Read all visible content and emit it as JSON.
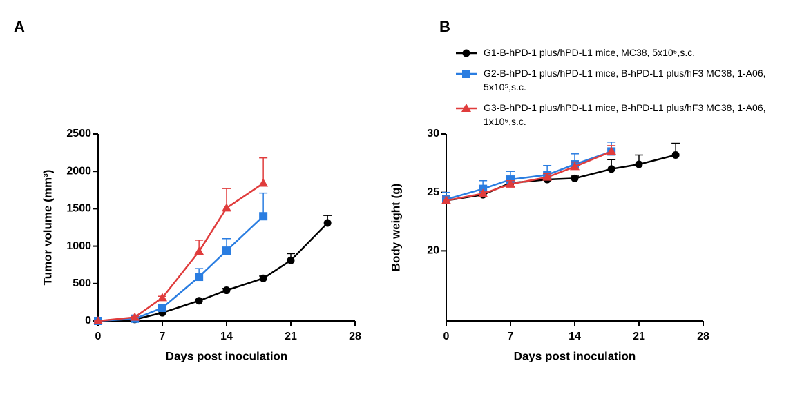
{
  "chart_data": [
    {
      "type": "line",
      "panel_label": "A",
      "x_label": "Days post inoculation",
      "y_label": "Tumor volume (mm³)",
      "xlim": [
        0,
        28
      ],
      "xticks": [
        0,
        7,
        14,
        21,
        28
      ],
      "ylim": [
        0,
        2500
      ],
      "yticks": [
        0,
        500,
        1000,
        1500,
        2000,
        2500
      ],
      "series": [
        {
          "color": "#000000",
          "marker": "circle",
          "x": [
            0,
            4,
            7,
            11,
            14,
            18,
            21,
            25
          ],
          "values": [
            0,
            20,
            110,
            270,
            410,
            570,
            810,
            1310
          ],
          "errors": [
            0,
            5,
            15,
            20,
            25,
            30,
            90,
            100
          ]
        },
        {
          "color": "#2a7de1",
          "marker": "square",
          "x": [
            0,
            4,
            7,
            11,
            14,
            18
          ],
          "values": [
            0,
            30,
            175,
            590,
            940,
            1400
          ],
          "errors": [
            0,
            10,
            30,
            110,
            160,
            310
          ]
        },
        {
          "color": "#e03c3c",
          "marker": "triangle",
          "x": [
            0,
            4,
            7,
            11,
            14,
            18
          ],
          "values": [
            0,
            50,
            310,
            930,
            1510,
            1840
          ],
          "errors": [
            0,
            10,
            20,
            150,
            260,
            340
          ]
        }
      ]
    },
    {
      "type": "line",
      "panel_label": "B",
      "x_label": "Days post inoculation",
      "y_label": "Body weight (g)",
      "xlim": [
        0,
        28
      ],
      "xticks": [
        0,
        7,
        14,
        21,
        28
      ],
      "ylim": [
        14,
        30
      ],
      "yticks": [
        20,
        25,
        30
      ],
      "series": [
        {
          "name": "G1-B-hPD-1 plus/hPD-L1 mice, MC38, 5x10⁵,s.c.",
          "color": "#000000",
          "marker": "circle",
          "x": [
            0,
            4,
            7,
            11,
            14,
            18,
            21,
            25
          ],
          "values": [
            24.3,
            24.8,
            25.8,
            26.1,
            26.2,
            27.0,
            27.4,
            28.2
          ],
          "errors": [
            0.2,
            0.2,
            0.3,
            0.2,
            0.2,
            0.8,
            0.8,
            1.0
          ]
        },
        {
          "name": "G2-B-hPD-1 plus/hPD-L1 mice, B-hPD-L1 plus/hF3 MC38, 1-A06, 5x10⁵,s.c.",
          "color": "#2a7de1",
          "marker": "square",
          "x": [
            0,
            4,
            7,
            11,
            14,
            18
          ],
          "values": [
            24.4,
            25.3,
            26.1,
            26.5,
            27.4,
            28.5
          ],
          "errors": [
            0.6,
            0.7,
            0.7,
            0.8,
            0.9,
            0.8
          ]
        },
        {
          "name": "G3-B-hPD-1 plus/hPD-L1 mice, B-hPD-L1 plus/hF3 MC38, 1-A06, 1x10⁶,s.c.",
          "color": "#e03c3c",
          "marker": "triangle",
          "x": [
            0,
            4,
            7,
            11,
            14,
            18
          ],
          "values": [
            24.3,
            24.9,
            25.7,
            26.3,
            27.2,
            28.5
          ],
          "errors": [
            0.3,
            0.2,
            0.3,
            0.3,
            0.4,
            0.5
          ]
        }
      ]
    }
  ]
}
